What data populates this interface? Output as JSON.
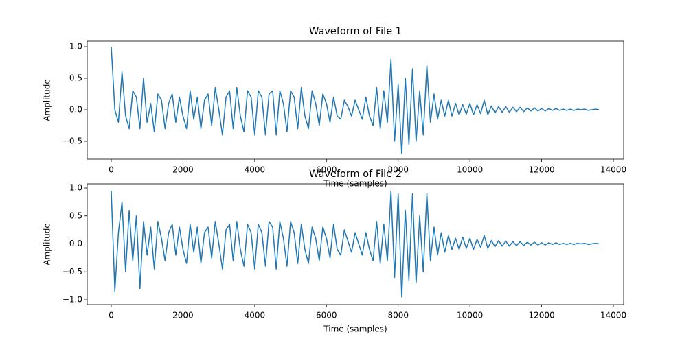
{
  "chart_data": [
    {
      "type": "line",
      "title": "Waveform of File 1",
      "xlabel": "Time (samples)",
      "ylabel": "Amplitude",
      "color": "#1f77b4",
      "x": [
        0,
        100,
        200,
        300,
        400,
        500,
        600,
        700,
        800,
        900,
        1000,
        1100,
        1200,
        1300,
        1400,
        1500,
        1600,
        1700,
        1800,
        1900,
        2000,
        2100,
        2200,
        2300,
        2400,
        2500,
        2600,
        2700,
        2800,
        2900,
        3000,
        3100,
        3200,
        3300,
        3400,
        3500,
        3600,
        3700,
        3800,
        3900,
        4000,
        4100,
        4200,
        4300,
        4400,
        4500,
        4600,
        4700,
        4800,
        4900,
        5000,
        5100,
        5200,
        5300,
        5400,
        5500,
        5600,
        5700,
        5800,
        5900,
        6000,
        6100,
        6200,
        6300,
        6400,
        6500,
        6600,
        6700,
        6800,
        6900,
        7000,
        7100,
        7200,
        7300,
        7400,
        7500,
        7600,
        7700,
        7800,
        7900,
        8000,
        8100,
        8200,
        8300,
        8400,
        8500,
        8600,
        8700,
        8800,
        8900,
        9000,
        9100,
        9200,
        9300,
        9400,
        9500,
        9600,
        9700,
        9800,
        9900,
        10000,
        10100,
        10200,
        10300,
        10400,
        10500,
        10600,
        10700,
        10800,
        10900,
        11000,
        11100,
        11200,
        11300,
        11400,
        11500,
        11600,
        11700,
        11800,
        11900,
        12000,
        12100,
        12200,
        12300,
        12400,
        12500,
        12600,
        12700,
        12800,
        12900,
        13000,
        13100,
        13200,
        13300,
        13400,
        13500,
        13600
      ],
      "values": [
        1.0,
        0.0,
        -0.2,
        0.6,
        -0.1,
        -0.3,
        0.3,
        0.2,
        -0.3,
        0.5,
        -0.2,
        0.1,
        -0.35,
        0.25,
        0.15,
        -0.3,
        0.1,
        0.25,
        -0.2,
        0.2,
        -0.1,
        -0.3,
        0.3,
        -0.15,
        0.2,
        -0.3,
        0.15,
        0.25,
        -0.25,
        0.35,
        0.0,
        -0.4,
        0.2,
        0.3,
        -0.3,
        0.35,
        -0.1,
        -0.35,
        0.3,
        0.2,
        -0.4,
        0.3,
        0.2,
        -0.4,
        0.25,
        0.3,
        -0.4,
        0.3,
        0.1,
        -0.35,
        0.3,
        0.2,
        -0.3,
        0.35,
        -0.1,
        -0.3,
        0.3,
        0.1,
        -0.25,
        0.25,
        0.1,
        -0.2,
        0.2,
        -0.1,
        -0.15,
        0.15,
        0.05,
        -0.1,
        0.15,
        0.0,
        -0.15,
        0.2,
        -0.1,
        -0.25,
        0.35,
        -0.3,
        0.3,
        -0.2,
        0.8,
        -0.5,
        0.4,
        -0.7,
        0.5,
        -0.55,
        0.65,
        -0.5,
        0.3,
        -0.4,
        0.7,
        -0.2,
        0.25,
        -0.15,
        0.15,
        -0.1,
        0.15,
        -0.1,
        0.1,
        -0.08,
        0.08,
        -0.07,
        0.1,
        -0.08,
        0.08,
        -0.06,
        0.15,
        -0.08,
        0.06,
        -0.05,
        0.05,
        -0.04,
        0.05,
        -0.04,
        0.04,
        -0.03,
        0.04,
        -0.03,
        0.03,
        -0.02,
        0.03,
        -0.02,
        0.02,
        -0.02,
        0.02,
        -0.01,
        0.02,
        -0.01,
        0.01,
        -0.01,
        0.01,
        -0.01,
        0.01,
        0.0,
        0.01,
        -0.01,
        0.0,
        0.01,
        0.0
      ],
      "xlim": [
        -670,
        14287
      ],
      "xticks": [
        0,
        2000,
        4000,
        6000,
        8000,
        10000,
        12000,
        14000
      ],
      "ylim": [
        -0.783,
        1.087
      ],
      "yticks": [
        {
          "value": -0.5,
          "label": "−0.5"
        },
        {
          "value": 0.0,
          "label": "0.0"
        },
        0.5,
        {
          "value": 1.0,
          "label": "1.0"
        }
      ]
    },
    {
      "type": "line",
      "title": "Waveform of File 2",
      "xlabel": "Time (samples)",
      "ylabel": "Amplitude",
      "color": "#1f77b4",
      "x": [
        0,
        100,
        200,
        300,
        400,
        500,
        600,
        700,
        800,
        900,
        1000,
        1100,
        1200,
        1300,
        1400,
        1500,
        1600,
        1700,
        1800,
        1900,
        2000,
        2100,
        2200,
        2300,
        2400,
        2500,
        2600,
        2700,
        2800,
        2900,
        3000,
        3100,
        3200,
        3300,
        3400,
        3500,
        3600,
        3700,
        3800,
        3900,
        4000,
        4100,
        4200,
        4300,
        4400,
        4500,
        4600,
        4700,
        4800,
        4900,
        5000,
        5100,
        5200,
        5300,
        5400,
        5500,
        5600,
        5700,
        5800,
        5900,
        6000,
        6100,
        6200,
        6300,
        6400,
        6500,
        6600,
        6700,
        6800,
        6900,
        7000,
        7100,
        7200,
        7300,
        7400,
        7500,
        7600,
        7700,
        7800,
        7900,
        8000,
        8100,
        8200,
        8300,
        8400,
        8500,
        8600,
        8700,
        8800,
        8900,
        9000,
        9100,
        9200,
        9300,
        9400,
        9500,
        9600,
        9700,
        9800,
        9900,
        10000,
        10100,
        10200,
        10300,
        10400,
        10500,
        10600,
        10700,
        10800,
        10900,
        11000,
        11100,
        11200,
        11300,
        11400,
        11500,
        11600,
        11700,
        11800,
        11900,
        12000,
        12100,
        12200,
        12300,
        12400,
        12500,
        12600,
        12700,
        12800,
        12900,
        13000,
        13100,
        13200,
        13300,
        13400,
        13500,
        13600
      ],
      "values": [
        0.95,
        -0.85,
        0.2,
        0.75,
        -0.5,
        0.6,
        -0.3,
        0.5,
        -0.8,
        0.4,
        -0.2,
        0.3,
        -0.45,
        0.4,
        0.1,
        -0.3,
        0.2,
        0.35,
        -0.2,
        0.3,
        -0.1,
        -0.35,
        0.35,
        -0.15,
        0.3,
        -0.35,
        0.2,
        0.3,
        -0.25,
        0.4,
        0.0,
        -0.45,
        0.25,
        0.35,
        -0.3,
        0.4,
        -0.1,
        -0.4,
        0.35,
        0.2,
        -0.45,
        0.35,
        0.2,
        -0.4,
        0.4,
        0.3,
        -0.45,
        0.4,
        0.1,
        -0.4,
        0.4,
        0.2,
        -0.35,
        0.35,
        -0.1,
        -0.35,
        0.3,
        0.1,
        -0.3,
        0.3,
        0.1,
        -0.25,
        0.35,
        -0.1,
        -0.2,
        0.25,
        0.05,
        -0.15,
        0.2,
        0.0,
        -0.2,
        0.2,
        -0.1,
        -0.3,
        0.4,
        -0.35,
        0.35,
        -0.3,
        0.95,
        -0.6,
        0.9,
        -0.95,
        0.6,
        -0.65,
        0.9,
        -0.7,
        0.5,
        -0.5,
        0.9,
        -0.3,
        0.3,
        -0.2,
        0.2,
        -0.15,
        0.15,
        -0.1,
        0.1,
        -0.1,
        0.12,
        -0.08,
        0.1,
        -0.1,
        0.08,
        -0.06,
        0.15,
        -0.08,
        0.06,
        -0.05,
        0.06,
        -0.04,
        0.05,
        -0.04,
        0.04,
        -0.03,
        0.04,
        -0.03,
        0.03,
        -0.02,
        0.03,
        -0.02,
        0.02,
        -0.02,
        0.02,
        -0.01,
        0.02,
        -0.01,
        0.01,
        -0.01,
        0.01,
        -0.01,
        0.01,
        0.0,
        0.01,
        -0.01,
        0.0,
        0.01,
        0.0
      ],
      "xlim": [
        -670,
        14287
      ],
      "xticks": [
        0,
        2000,
        4000,
        6000,
        8000,
        10000,
        12000,
        14000
      ],
      "ylim": [
        -1.086,
        1.074
      ],
      "yticks": [
        {
          "value": -1.0,
          "label": "−1.0"
        },
        {
          "value": -0.5,
          "label": "−0.5"
        },
        {
          "value": 0.0,
          "label": "0.0"
        },
        0.5,
        {
          "value": 1.0,
          "label": "1.0"
        }
      ]
    }
  ]
}
